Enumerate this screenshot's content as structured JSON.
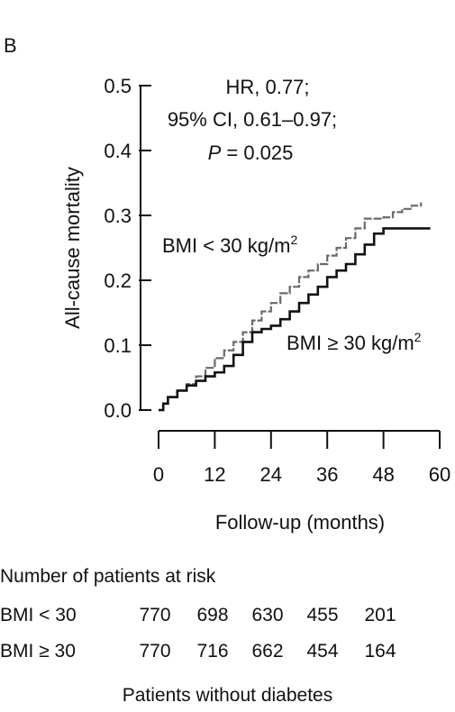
{
  "panel_label": "B",
  "caption": "Patients without diabetes",
  "risk_table": {
    "title": "Number of patients at risk",
    "rows": [
      {
        "label": "BMI < 30",
        "values": [
          "770",
          "698",
          "630",
          "455",
          "201"
        ]
      },
      {
        "label": "BMI ≥ 30",
        "values": [
          "770",
          "716",
          "662",
          "454",
          "164"
        ]
      }
    ]
  },
  "chart_data": {
    "type": "line",
    "xlabel": "Follow-up (months)",
    "ylabel": "All-cause mortality",
    "xlim": [
      0,
      60
    ],
    "ylim": [
      0,
      0.5
    ],
    "x_ticks": [
      0,
      12,
      24,
      36,
      48,
      60
    ],
    "y_ticks": [
      "0.0",
      "0.1",
      "0.2",
      "0.3",
      "0.4",
      "0.5"
    ],
    "annotation": {
      "line1": "HR, 0.77;",
      "line2": "95% CI, 0.61–0.97;",
      "line3_p": "P",
      "line3_rest": " = 0.025"
    },
    "series": [
      {
        "name": "BMI < 30 kg/m²",
        "label_base": "BMI < 30 kg/m",
        "label_sup": "2",
        "color": "#6a6a6a",
        "x": [
          0,
          1,
          2,
          4,
          6,
          8,
          10,
          12,
          14,
          16,
          18,
          20,
          22,
          24,
          26,
          28,
          30,
          32,
          34,
          36,
          38,
          40,
          42,
          44,
          46,
          48,
          50,
          52,
          54,
          56
        ],
        "y": [
          0.0,
          0.01,
          0.02,
          0.03,
          0.04,
          0.052,
          0.065,
          0.08,
          0.092,
          0.105,
          0.12,
          0.138,
          0.152,
          0.165,
          0.18,
          0.19,
          0.205,
          0.215,
          0.225,
          0.238,
          0.25,
          0.265,
          0.28,
          0.295,
          0.295,
          0.297,
          0.305,
          0.31,
          0.315,
          0.32
        ]
      },
      {
        "name": "BMI ≥ 30 kg/m²",
        "label_base": "BMI ≥ 30 kg/m",
        "label_sup": "2",
        "color": "#111111",
        "x": [
          0,
          1,
          2,
          4,
          6,
          8,
          10,
          12,
          14,
          16,
          18,
          20,
          22,
          24,
          26,
          28,
          30,
          32,
          34,
          36,
          38,
          40,
          42,
          44,
          46,
          48,
          50,
          52,
          54,
          56,
          58
        ],
        "y": [
          0.0,
          0.01,
          0.02,
          0.03,
          0.038,
          0.045,
          0.052,
          0.058,
          0.068,
          0.085,
          0.105,
          0.12,
          0.125,
          0.13,
          0.14,
          0.152,
          0.165,
          0.178,
          0.19,
          0.205,
          0.215,
          0.225,
          0.24,
          0.255,
          0.272,
          0.28,
          0.28,
          0.28,
          0.28,
          0.28,
          0.28
        ]
      }
    ]
  }
}
